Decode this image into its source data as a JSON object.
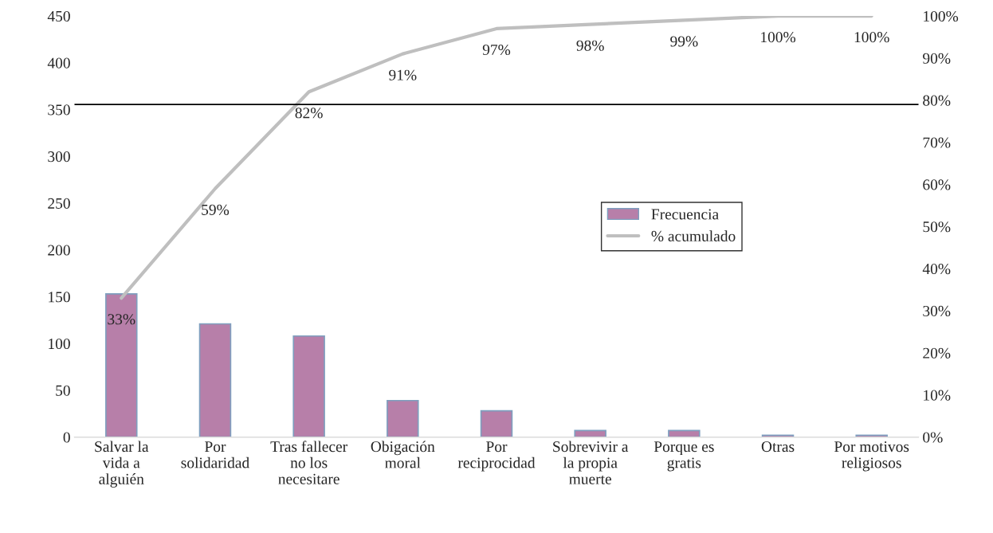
{
  "chart_data": {
    "type": "bar",
    "categories": [
      "Salvar la vida a alguién",
      "Por solidaridad",
      "Tras fallecer no los necesitare",
      "Obigación moral",
      "Por reciprocidad",
      "Sobrevivir a la propia muerte",
      "Porque es gratis",
      "Otras",
      "Por motivos religiosos"
    ],
    "series": [
      {
        "name": "Frecuencia",
        "color": "#b77fa9",
        "values": [
          153,
          121,
          108,
          39,
          28,
          7,
          7,
          2,
          2
        ]
      },
      {
        "name": "% acumulado",
        "type": "line",
        "axis": "y2",
        "color": "#bfbfbf",
        "values": [
          33,
          59,
          82,
          91,
          97,
          98,
          99,
          100,
          100
        ],
        "value_labels": [
          "33%",
          "59%",
          "82%",
          "91%",
          "97%",
          "98%",
          "99%",
          "100%",
          "100%"
        ]
      }
    ],
    "ylim": [
      0,
      450
    ],
    "yticks": [
      0,
      50,
      100,
      150,
      200,
      250,
      300,
      350,
      400,
      450
    ],
    "y2lim": [
      0,
      100
    ],
    "y2ticks": [
      {
        "value": 0,
        "label": "0%"
      },
      {
        "value": 10,
        "label": "10%"
      },
      {
        "value": 20,
        "label": "20%"
      },
      {
        "value": 30,
        "label": "30%"
      },
      {
        "value": 40,
        "label": "40%"
      },
      {
        "value": 50,
        "label": "50%"
      },
      {
        "value": 60,
        "label": "60%"
      },
      {
        "value": 70,
        "label": "70%"
      },
      {
        "value": 80,
        "label": "80%"
      },
      {
        "value": 90,
        "label": "90%"
      },
      {
        "value": 100,
        "label": "100%"
      }
    ],
    "ref_lines": [
      {
        "axis": "y2",
        "value": 79,
        "color": "#000000"
      }
    ],
    "legend": "center right",
    "grid": false
  }
}
